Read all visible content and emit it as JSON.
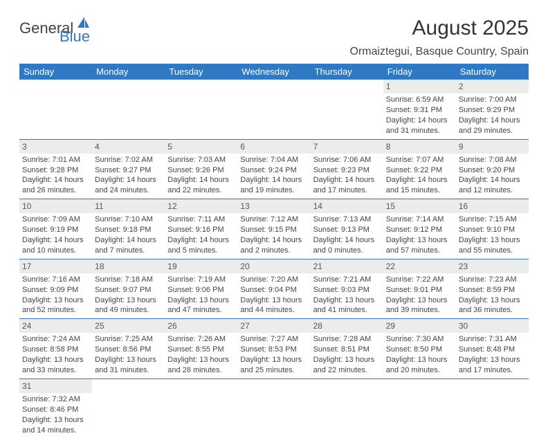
{
  "logo": {
    "text_general": "General",
    "text_blue": "Blue",
    "icon_color": "#2f78c4"
  },
  "title": "August 2025",
  "location": "Ormaiztegui, Basque Country, Spain",
  "colors": {
    "header_bg": "#2f78c4",
    "header_text": "#ffffff",
    "daynum_bg": "#ececec",
    "border": "#2f78c4",
    "text": "#444444"
  },
  "day_headers": [
    "Sunday",
    "Monday",
    "Tuesday",
    "Wednesday",
    "Thursday",
    "Friday",
    "Saturday"
  ],
  "weeks": [
    [
      {
        "empty": true
      },
      {
        "empty": true
      },
      {
        "empty": true
      },
      {
        "empty": true
      },
      {
        "empty": true
      },
      {
        "num": "1",
        "sunrise": "Sunrise: 6:59 AM",
        "sunset": "Sunset: 9:31 PM",
        "day1": "Daylight: 14 hours",
        "day2": "and 31 minutes."
      },
      {
        "num": "2",
        "sunrise": "Sunrise: 7:00 AM",
        "sunset": "Sunset: 9:29 PM",
        "day1": "Daylight: 14 hours",
        "day2": "and 29 minutes."
      }
    ],
    [
      {
        "num": "3",
        "sunrise": "Sunrise: 7:01 AM",
        "sunset": "Sunset: 9:28 PM",
        "day1": "Daylight: 14 hours",
        "day2": "and 26 minutes."
      },
      {
        "num": "4",
        "sunrise": "Sunrise: 7:02 AM",
        "sunset": "Sunset: 9:27 PM",
        "day1": "Daylight: 14 hours",
        "day2": "and 24 minutes."
      },
      {
        "num": "5",
        "sunrise": "Sunrise: 7:03 AM",
        "sunset": "Sunset: 9:26 PM",
        "day1": "Daylight: 14 hours",
        "day2": "and 22 minutes."
      },
      {
        "num": "6",
        "sunrise": "Sunrise: 7:04 AM",
        "sunset": "Sunset: 9:24 PM",
        "day1": "Daylight: 14 hours",
        "day2": "and 19 minutes."
      },
      {
        "num": "7",
        "sunrise": "Sunrise: 7:06 AM",
        "sunset": "Sunset: 9:23 PM",
        "day1": "Daylight: 14 hours",
        "day2": "and 17 minutes."
      },
      {
        "num": "8",
        "sunrise": "Sunrise: 7:07 AM",
        "sunset": "Sunset: 9:22 PM",
        "day1": "Daylight: 14 hours",
        "day2": "and 15 minutes."
      },
      {
        "num": "9",
        "sunrise": "Sunrise: 7:08 AM",
        "sunset": "Sunset: 9:20 PM",
        "day1": "Daylight: 14 hours",
        "day2": "and 12 minutes."
      }
    ],
    [
      {
        "num": "10",
        "sunrise": "Sunrise: 7:09 AM",
        "sunset": "Sunset: 9:19 PM",
        "day1": "Daylight: 14 hours",
        "day2": "and 10 minutes."
      },
      {
        "num": "11",
        "sunrise": "Sunrise: 7:10 AM",
        "sunset": "Sunset: 9:18 PM",
        "day1": "Daylight: 14 hours",
        "day2": "and 7 minutes."
      },
      {
        "num": "12",
        "sunrise": "Sunrise: 7:11 AM",
        "sunset": "Sunset: 9:16 PM",
        "day1": "Daylight: 14 hours",
        "day2": "and 5 minutes."
      },
      {
        "num": "13",
        "sunrise": "Sunrise: 7:12 AM",
        "sunset": "Sunset: 9:15 PM",
        "day1": "Daylight: 14 hours",
        "day2": "and 2 minutes."
      },
      {
        "num": "14",
        "sunrise": "Sunrise: 7:13 AM",
        "sunset": "Sunset: 9:13 PM",
        "day1": "Daylight: 14 hours",
        "day2": "and 0 minutes."
      },
      {
        "num": "15",
        "sunrise": "Sunrise: 7:14 AM",
        "sunset": "Sunset: 9:12 PM",
        "day1": "Daylight: 13 hours",
        "day2": "and 57 minutes."
      },
      {
        "num": "16",
        "sunrise": "Sunrise: 7:15 AM",
        "sunset": "Sunset: 9:10 PM",
        "day1": "Daylight: 13 hours",
        "day2": "and 55 minutes."
      }
    ],
    [
      {
        "num": "17",
        "sunrise": "Sunrise: 7:16 AM",
        "sunset": "Sunset: 9:09 PM",
        "day1": "Daylight: 13 hours",
        "day2": "and 52 minutes."
      },
      {
        "num": "18",
        "sunrise": "Sunrise: 7:18 AM",
        "sunset": "Sunset: 9:07 PM",
        "day1": "Daylight: 13 hours",
        "day2": "and 49 minutes."
      },
      {
        "num": "19",
        "sunrise": "Sunrise: 7:19 AM",
        "sunset": "Sunset: 9:06 PM",
        "day1": "Daylight: 13 hours",
        "day2": "and 47 minutes."
      },
      {
        "num": "20",
        "sunrise": "Sunrise: 7:20 AM",
        "sunset": "Sunset: 9:04 PM",
        "day1": "Daylight: 13 hours",
        "day2": "and 44 minutes."
      },
      {
        "num": "21",
        "sunrise": "Sunrise: 7:21 AM",
        "sunset": "Sunset: 9:03 PM",
        "day1": "Daylight: 13 hours",
        "day2": "and 41 minutes."
      },
      {
        "num": "22",
        "sunrise": "Sunrise: 7:22 AM",
        "sunset": "Sunset: 9:01 PM",
        "day1": "Daylight: 13 hours",
        "day2": "and 39 minutes."
      },
      {
        "num": "23",
        "sunrise": "Sunrise: 7:23 AM",
        "sunset": "Sunset: 8:59 PM",
        "day1": "Daylight: 13 hours",
        "day2": "and 36 minutes."
      }
    ],
    [
      {
        "num": "24",
        "sunrise": "Sunrise: 7:24 AM",
        "sunset": "Sunset: 8:58 PM",
        "day1": "Daylight: 13 hours",
        "day2": "and 33 minutes."
      },
      {
        "num": "25",
        "sunrise": "Sunrise: 7:25 AM",
        "sunset": "Sunset: 8:56 PM",
        "day1": "Daylight: 13 hours",
        "day2": "and 31 minutes."
      },
      {
        "num": "26",
        "sunrise": "Sunrise: 7:26 AM",
        "sunset": "Sunset: 8:55 PM",
        "day1": "Daylight: 13 hours",
        "day2": "and 28 minutes."
      },
      {
        "num": "27",
        "sunrise": "Sunrise: 7:27 AM",
        "sunset": "Sunset: 8:53 PM",
        "day1": "Daylight: 13 hours",
        "day2": "and 25 minutes."
      },
      {
        "num": "28",
        "sunrise": "Sunrise: 7:28 AM",
        "sunset": "Sunset: 8:51 PM",
        "day1": "Daylight: 13 hours",
        "day2": "and 22 minutes."
      },
      {
        "num": "29",
        "sunrise": "Sunrise: 7:30 AM",
        "sunset": "Sunset: 8:50 PM",
        "day1": "Daylight: 13 hours",
        "day2": "and 20 minutes."
      },
      {
        "num": "30",
        "sunrise": "Sunrise: 7:31 AM",
        "sunset": "Sunset: 8:48 PM",
        "day1": "Daylight: 13 hours",
        "day2": "and 17 minutes."
      }
    ],
    [
      {
        "num": "31",
        "sunrise": "Sunrise: 7:32 AM",
        "sunset": "Sunset: 8:46 PM",
        "day1": "Daylight: 13 hours",
        "day2": "and 14 minutes."
      },
      {
        "empty": true
      },
      {
        "empty": true
      },
      {
        "empty": true
      },
      {
        "empty": true
      },
      {
        "empty": true
      },
      {
        "empty": true
      }
    ]
  ]
}
